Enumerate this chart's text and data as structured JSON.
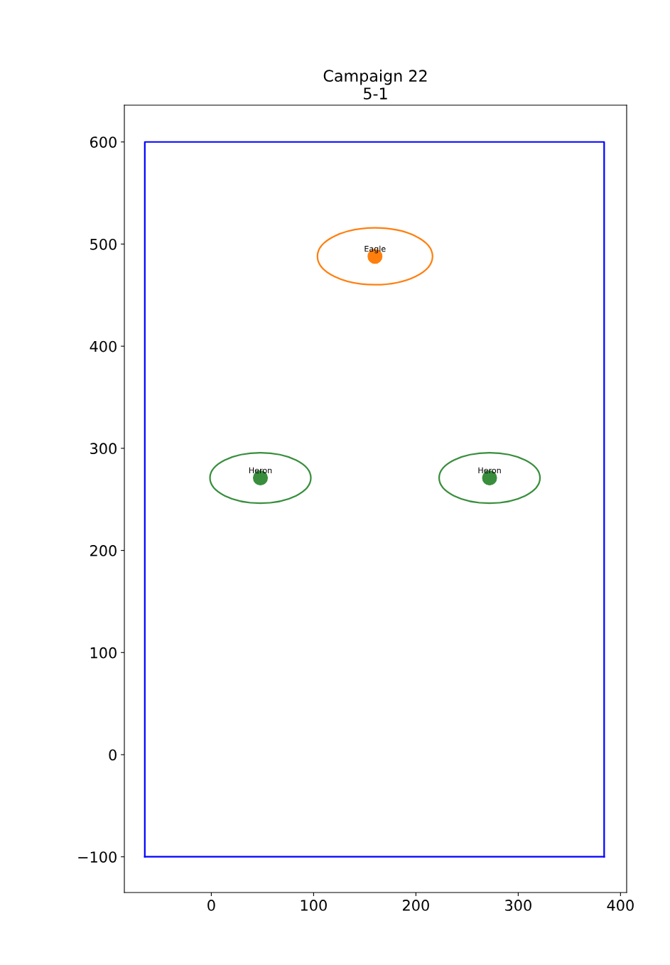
{
  "chart_data": {
    "type": "scatter",
    "title": "Campaign 22\n5-1",
    "xlim": [
      -85,
      406
    ],
    "ylim": [
      -135,
      636
    ],
    "xticks": [
      0,
      100,
      200,
      300,
      400
    ],
    "yticks": [
      -100,
      0,
      100,
      200,
      300,
      400,
      500,
      600
    ],
    "grid": false,
    "legend": false,
    "series": [
      {
        "type": "line",
        "color": "#0000ff",
        "x": [
          -65,
          -65,
          384,
          384
        ],
        "values": [
          -100,
          600,
          600,
          -100
        ]
      },
      {
        "type": "line",
        "color": "#0000ff",
        "x": [
          -65,
          384
        ],
        "values": [
          -100,
          -100
        ]
      },
      {
        "name": "Eagle",
        "color": "#ff7f0e",
        "marker": "circle",
        "x": [
          160
        ],
        "values": [
          488
        ]
      },
      {
        "name": "Heron",
        "color": "#388e3c",
        "marker": "circle",
        "x": [
          48,
          272
        ],
        "values": [
          271,
          271
        ]
      }
    ]
  }
}
